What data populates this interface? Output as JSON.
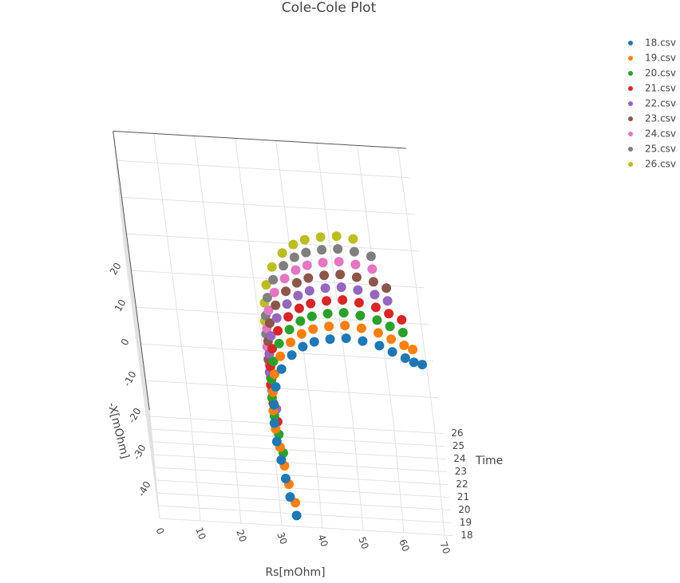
{
  "chart_data": {
    "type": "scatter3d",
    "title": "Cole-Cole Plot",
    "x_label": "Rs[mOhm]",
    "y_label": "-X[mOhm]",
    "z_label": "Time",
    "xlim": [
      0,
      72
    ],
    "ylim": [
      -48,
      28
    ],
    "zlim": [
      18,
      26.5
    ],
    "xticks": [
      0,
      10,
      20,
      30,
      40,
      50,
      60,
      70
    ],
    "yticks": [
      -40,
      -30,
      -20,
      -10,
      0,
      10,
      20
    ],
    "zticks": [
      18,
      19,
      20,
      21,
      22,
      23,
      24,
      25,
      26
    ],
    "grid": true,
    "series": [
      {
        "name": "18.csv",
        "color": "#1f77b4",
        "time": 18,
        "x": [
          34,
          33,
          32.5,
          32,
          31.5,
          31.5,
          32,
          33,
          35,
          38,
          41,
          44,
          48,
          52,
          56,
          60,
          63,
          66,
          68,
          70
        ],
        "values": [
          -45,
          -40,
          -35,
          -30,
          -25,
          -20,
          -15,
          -10,
          -5,
          -1,
          1.5,
          3,
          4,
          4.5,
          4,
          3,
          1.5,
          0,
          -1,
          -1.5
        ]
      },
      {
        "name": "19.csv",
        "color": "#ff7f0e",
        "time": 19,
        "x": [
          34,
          33,
          32.5,
          32,
          31.5,
          31.5,
          32,
          33,
          35,
          38,
          41,
          44,
          48,
          52,
          56,
          60,
          63,
          66,
          68
        ],
        "values": [
          -45,
          -40,
          -35,
          -30,
          -25,
          -20,
          -15,
          -10,
          -5,
          -1,
          1.5,
          3,
          4,
          4.5,
          4,
          3,
          1.5,
          0,
          -1
        ]
      },
      {
        "name": "20.csv",
        "color": "#2ca02c",
        "time": 20,
        "x": [
          32.5,
          32,
          31.5,
          31.5,
          32,
          33,
          35,
          38,
          41,
          44,
          48,
          52,
          56,
          60,
          63,
          66
        ],
        "values": [
          -35,
          -30,
          -25,
          -20,
          -15,
          -10,
          -5,
          -1,
          1.5,
          3,
          4,
          4.5,
          4,
          3,
          1.5,
          0
        ]
      },
      {
        "name": "21.csv",
        "color": "#d62728",
        "time": 21,
        "x": [
          32,
          31.5,
          31.5,
          32,
          33,
          35,
          38,
          41,
          44,
          48,
          52,
          56,
          60,
          63,
          66
        ],
        "values": [
          -30,
          -25,
          -20,
          -15,
          -10,
          -5,
          -1,
          1.5,
          3,
          4,
          4.5,
          4,
          3,
          1.5,
          0
        ]
      },
      {
        "name": "22.csv",
        "color": "#9467bd",
        "time": 22,
        "x": [
          32,
          31.5,
          31.5,
          32,
          33,
          35,
          38,
          41,
          44,
          48,
          52,
          56,
          60,
          63
        ],
        "values": [
          -30,
          -25,
          -20,
          -15,
          -10,
          -5,
          -1,
          1.5,
          3,
          4,
          4.5,
          4,
          3,
          1.5
        ]
      },
      {
        "name": "23.csv",
        "color": "#8c564b",
        "time": 23,
        "x": [
          31.5,
          31.5,
          32,
          33,
          35,
          38,
          41,
          44,
          48,
          52,
          56,
          60,
          63
        ],
        "values": [
          -25,
          -20,
          -15,
          -10,
          -5,
          -1,
          1.5,
          3,
          4,
          4.5,
          4,
          3,
          1.5
        ]
      },
      {
        "name": "24.csv",
        "color": "#e377c2",
        "time": 24,
        "x": [
          31.5,
          31.5,
          32,
          33,
          35,
          38,
          41,
          44,
          48,
          52,
          56,
          60
        ],
        "values": [
          -25,
          -20,
          -15,
          -10,
          -5,
          -1,
          1.5,
          3,
          4,
          4.5,
          4,
          3
        ]
      },
      {
        "name": "25.csv",
        "color": "#7f7f7f",
        "time": 25,
        "x": [
          31.5,
          32,
          33,
          35,
          38,
          41,
          44,
          48,
          52,
          56,
          60
        ],
        "values": [
          -20,
          -15,
          -10,
          -5,
          -1,
          1.5,
          3,
          4,
          4.5,
          4,
          3
        ]
      },
      {
        "name": "26.csv",
        "color": "#bcbd22",
        "time": 26,
        "x": [
          31.5,
          32,
          33,
          35,
          38,
          41,
          44,
          48,
          52,
          56
        ],
        "values": [
          -20,
          -15,
          -10,
          -5,
          -1,
          1.5,
          3,
          4,
          4.5,
          4
        ]
      }
    ]
  }
}
